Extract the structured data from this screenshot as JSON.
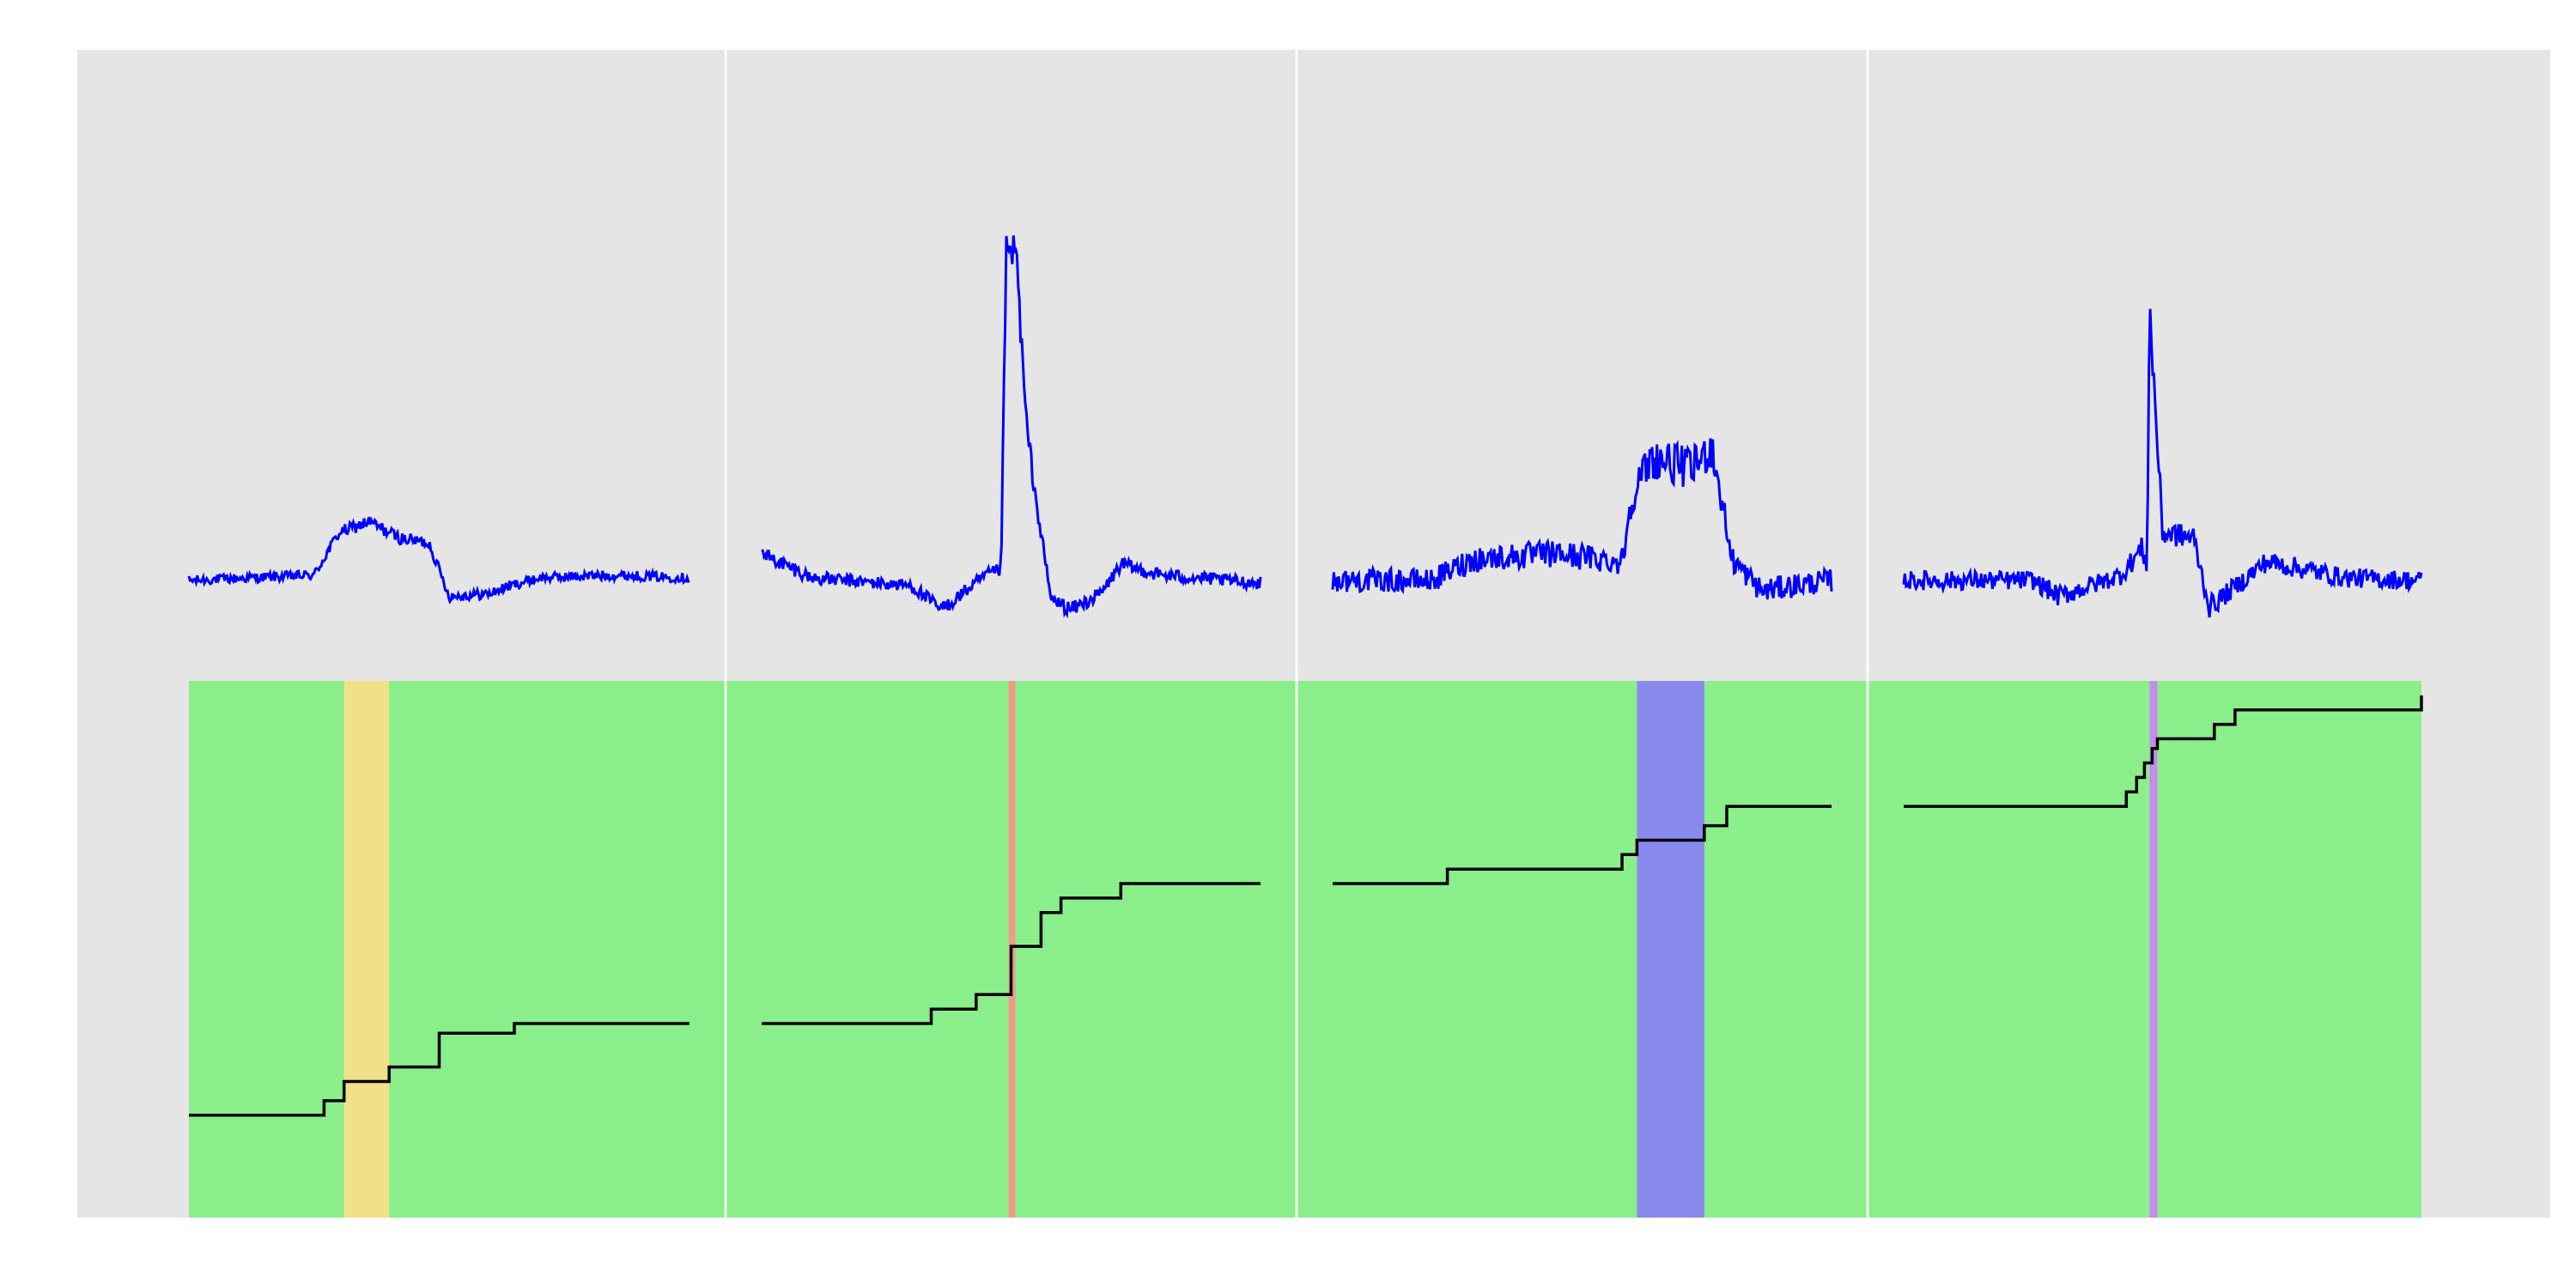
{
  "chart_data": {
    "type": "line",
    "title": "",
    "xlabel": "",
    "ylabel": "",
    "grid": true,
    "legend": "none",
    "colors": {
      "panel_background": "#e5e5e5",
      "grid_line": "#ffffff",
      "signal": "#0000ff",
      "step": "#000000",
      "band_base": "#8aee8a"
    },
    "panels": [
      {
        "signal": {
          "baseline": 0,
          "anchors": [
            [
              0,
              0
            ],
            [
              0.25,
              0.1
            ],
            [
              0.3,
              0.9
            ],
            [
              0.36,
              1.1
            ],
            [
              0.42,
              0.8
            ],
            [
              0.48,
              0.7
            ],
            [
              0.5,
              0.2
            ],
            [
              0.52,
              -0.3
            ],
            [
              0.6,
              -0.25
            ],
            [
              0.64,
              -0.1
            ],
            [
              0.7,
              0.05
            ],
            [
              0.85,
              0.1
            ],
            [
              1,
              0.05
            ]
          ],
          "noise": 0.09,
          "ylim": [
            -3.5,
            4.9
          ]
        },
        "highlight": {
          "from": 0.31,
          "to": 0.4,
          "color": "#f0e08a"
        },
        "steps": [
          [
            0,
            0.1
          ],
          [
            0.27,
            0.13
          ],
          [
            0.31,
            0.17
          ],
          [
            0.4,
            0.2
          ],
          [
            0.5,
            0.27
          ],
          [
            0.65,
            0.29
          ],
          [
            1,
            0.29
          ]
        ]
      },
      {
        "signal": {
          "baseline": 0,
          "anchors": [
            [
              0,
              0.5
            ],
            [
              0.1,
              0.05
            ],
            [
              0.3,
              -0.1
            ],
            [
              0.36,
              -0.55
            ],
            [
              0.45,
              0.1
            ],
            [
              0.48,
              0.2
            ],
            [
              0.49,
              6.1
            ],
            [
              0.51,
              6.2
            ],
            [
              0.53,
              3
            ],
            [
              0.55,
              1.5
            ],
            [
              0.58,
              -0.35
            ],
            [
              0.62,
              -0.55
            ],
            [
              0.68,
              -0.25
            ],
            [
              0.72,
              0.3
            ],
            [
              0.8,
              0.1
            ],
            [
              1,
              -0.05
            ]
          ],
          "noise": 0.12,
          "ylim": [
            -3.5,
            6.6
          ]
        },
        "highlight": {
          "from": 0.495,
          "to": 0.505,
          "color": "#f09a8a"
        },
        "steps": [
          [
            0,
            0.29
          ],
          [
            0.34,
            0.32
          ],
          [
            0.43,
            0.35
          ],
          [
            0.5,
            0.45
          ],
          [
            0.56,
            0.52
          ],
          [
            0.6,
            0.55
          ],
          [
            0.72,
            0.58
          ],
          [
            1,
            0.58
          ]
        ]
      },
      {
        "signal": {
          "baseline": 0,
          "anchors": [
            [
              0,
              0
            ],
            [
              0.2,
              0
            ],
            [
              0.28,
              0.4
            ],
            [
              0.45,
              0.5
            ],
            [
              0.58,
              0.35
            ],
            [
              0.6,
              1.6
            ],
            [
              0.64,
              2.3
            ],
            [
              0.72,
              2.1
            ],
            [
              0.76,
              2.5
            ],
            [
              0.78,
              1.5
            ],
            [
              0.8,
              0.4
            ],
            [
              0.86,
              -0.2
            ],
            [
              0.92,
              -0.1
            ],
            [
              1,
              0
            ]
          ],
          "noise": 0.22,
          "ylim": [
            -3.5,
            4.9
          ]
        },
        "highlight": {
          "from": 0.61,
          "to": 0.745,
          "color": "#8a8aee"
        },
        "steps": [
          [
            0,
            0.58
          ],
          [
            0.23,
            0.61
          ],
          [
            0.58,
            0.64
          ],
          [
            0.61,
            0.67
          ],
          [
            0.745,
            0.7
          ],
          [
            0.79,
            0.74
          ],
          [
            1,
            0.74
          ]
        ]
      },
      {
        "signal": {
          "baseline": 0,
          "anchors": [
            [
              0,
              0
            ],
            [
              0.25,
              0
            ],
            [
              0.3,
              -0.3
            ],
            [
              0.42,
              0.1
            ],
            [
              0.46,
              0.6
            ],
            [
              0.47,
              0.3
            ],
            [
              0.475,
              5.1
            ],
            [
              0.49,
              2.6
            ],
            [
              0.5,
              0.9
            ],
            [
              0.56,
              0.8
            ],
            [
              0.59,
              -0.5
            ],
            [
              0.63,
              -0.2
            ],
            [
              0.7,
              0.35
            ],
            [
              0.78,
              0.2
            ],
            [
              0.85,
              0.05
            ],
            [
              1,
              0
            ]
          ],
          "noise": 0.18,
          "ylim": [
            -3.5,
            6.6
          ]
        },
        "highlight": {
          "from": 0.475,
          "to": 0.49,
          "color": "#c88aee"
        },
        "steps": [
          [
            0,
            0.74
          ],
          [
            0.43,
            0.77
          ],
          [
            0.45,
            0.8
          ],
          [
            0.465,
            0.83
          ],
          [
            0.48,
            0.86
          ],
          [
            0.49,
            0.88
          ],
          [
            0.6,
            0.91
          ],
          [
            0.64,
            0.94
          ],
          [
            1,
            0.97
          ]
        ]
      }
    ]
  }
}
